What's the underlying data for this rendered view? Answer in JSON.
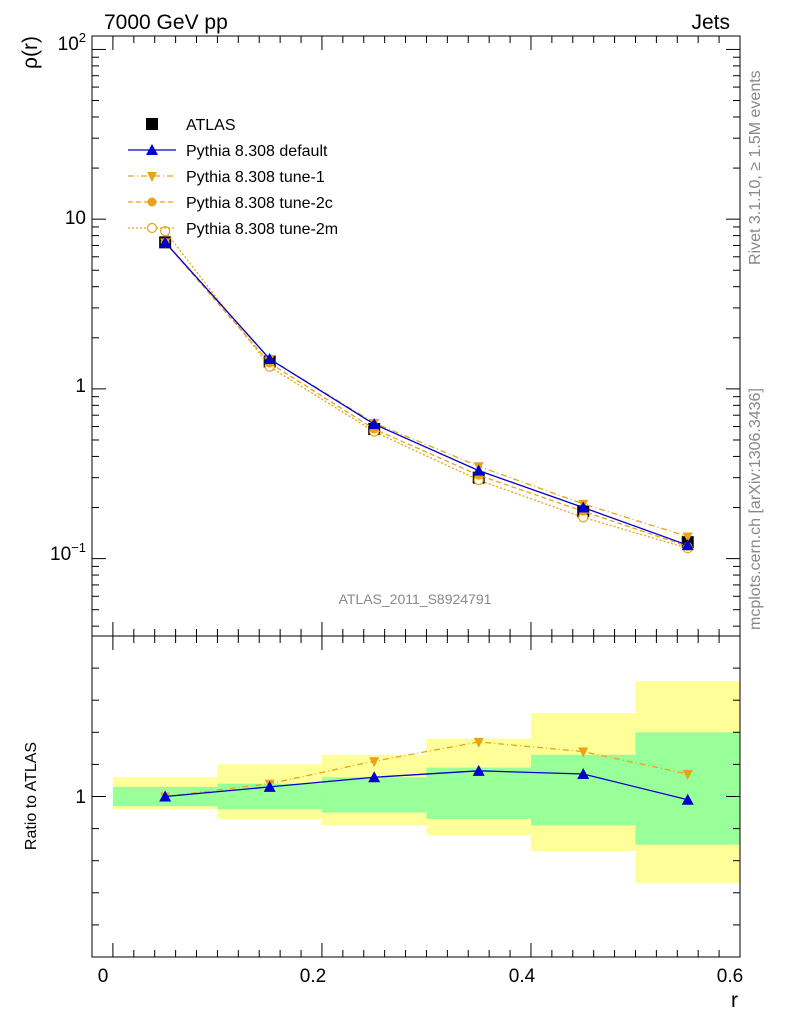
{
  "header": {
    "left": "7000 GeV pp",
    "right": "Jets"
  },
  "side": {
    "rivet_prefix": "Rivet 3.1.10, ",
    "rivet_ge": "≥",
    "rivet_suffix": " 1.5M events",
    "mcplots": "mcplots.cern.ch [arXiv:1306.3436]"
  },
  "analysis_id": "ATLAS_2011_S8924791",
  "colors": {
    "atlas": "#000000",
    "default": "#0000cc",
    "tunes": "#e8a317",
    "band_inner": "#99ff99",
    "band_outer": "#ffff99"
  },
  "chart_data": [
    {
      "type": "line",
      "panel": "main",
      "ylabel": "ρ(r)",
      "yscale": "log",
      "ylim": [
        0.035,
        120
      ],
      "xlim": [
        -0.02,
        0.6
      ],
      "ytick_labels": {
        "hundred_base": "10",
        "hundred_exp": "2",
        "ten": "10",
        "one": "1",
        "tenth_base": "10",
        "tenth_exp": "−1"
      },
      "x": [
        0.05,
        0.15,
        0.25,
        0.35,
        0.45,
        0.55
      ],
      "legend": "top-left",
      "series": [
        {
          "name": "ATLAS",
          "values": [
            7.3,
            1.45,
            0.58,
            0.3,
            0.19,
            0.125
          ]
        },
        {
          "name": "Pythia 8.308 default",
          "values": [
            7.3,
            1.5,
            0.62,
            0.33,
            0.2,
            0.12
          ]
        },
        {
          "name": "Pythia 8.308 tune-1",
          "values": [
            7.3,
            1.5,
            0.63,
            0.35,
            0.21,
            0.135
          ]
        },
        {
          "name": "Pythia 8.308 tune-2c",
          "values": [
            7.3,
            1.42,
            0.58,
            0.31,
            0.19,
            0.118
          ]
        },
        {
          "name": "Pythia 8.308 tune-2m",
          "values": [
            8.5,
            1.35,
            0.56,
            0.29,
            0.175,
            0.115
          ]
        }
      ]
    },
    {
      "type": "line",
      "panel": "ratio",
      "ylabel": "Ratio to ATLAS",
      "xlabel": "r",
      "ylim": [
        0.5,
        1.5
      ],
      "xlim": [
        -0.02,
        0.6
      ],
      "yticks_labeled": [
        1
      ],
      "xticks": [
        0,
        0.2,
        0.4,
        0.6
      ],
      "xtick_labels": [
        "0",
        "0.2",
        "0.4",
        "0.6"
      ],
      "bins": [
        [
          0.0,
          0.1
        ],
        [
          0.1,
          0.2
        ],
        [
          0.2,
          0.3
        ],
        [
          0.3,
          0.4
        ],
        [
          0.4,
          0.5
        ],
        [
          0.5,
          0.6
        ]
      ],
      "band_inner": [
        [
          0.97,
          1.03
        ],
        [
          0.96,
          1.04
        ],
        [
          0.95,
          1.06
        ],
        [
          0.93,
          1.09
        ],
        [
          0.91,
          1.13
        ],
        [
          0.85,
          1.2
        ]
      ],
      "band_outer": [
        [
          0.96,
          1.06
        ],
        [
          0.93,
          1.1
        ],
        [
          0.91,
          1.13
        ],
        [
          0.88,
          1.18
        ],
        [
          0.83,
          1.26
        ],
        [
          0.73,
          1.36
        ]
      ],
      "x": [
        0.05,
        0.15,
        0.25,
        0.35,
        0.45,
        0.55
      ],
      "series": [
        {
          "name": "Pythia 8.308 default",
          "values": [
            1.0,
            1.03,
            1.06,
            1.08,
            1.07,
            0.99
          ]
        },
        {
          "name": "Pythia 8.308 tune-1",
          "values": [
            1.0,
            1.04,
            1.11,
            1.17,
            1.14,
            1.07
          ]
        }
      ]
    }
  ]
}
